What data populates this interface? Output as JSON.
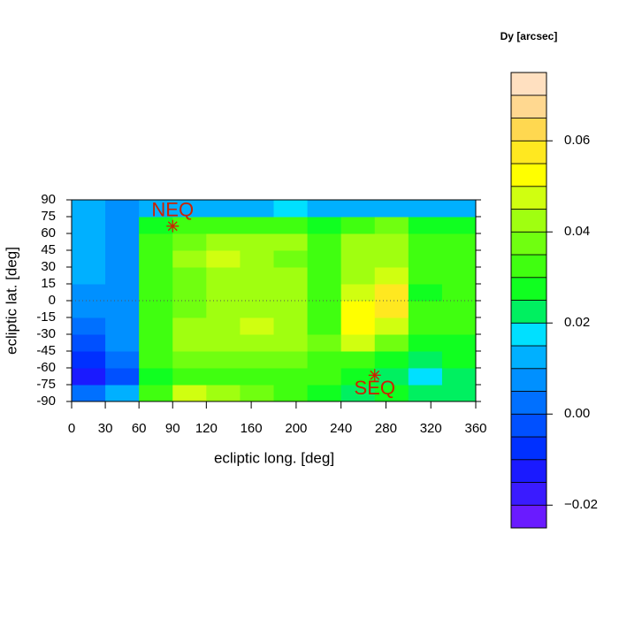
{
  "chart_data": {
    "type": "heatmap",
    "xlabel": "ecliptic long. [deg]",
    "ylabel": "ecliptic lat. [deg]",
    "xlim": [
      0,
      360
    ],
    "xticks": [
      0,
      30,
      60,
      90,
      120,
      160,
      200,
      240,
      280,
      320,
      360
    ],
    "ylim": [
      -90,
      90
    ],
    "yticks": [
      -90,
      -75,
      -60,
      -45,
      -30,
      -15,
      0,
      15,
      30,
      45,
      60,
      75,
      90
    ],
    "x": [
      15,
      45,
      75,
      105,
      135,
      165,
      195,
      225,
      255,
      285,
      315,
      345
    ],
    "y": [
      -82.5,
      -67.5,
      -52.5,
      -37.5,
      -22.5,
      -7.5,
      7.5,
      22.5,
      37.5,
      52.5,
      67.5,
      82.5
    ],
    "z": [
      [
        0.0,
        0.01,
        0.03,
        0.045,
        0.04,
        0.035,
        0.03,
        0.025,
        0.02,
        0.025,
        0.02,
        0.02
      ],
      [
        -0.015,
        -0.005,
        0.025,
        0.03,
        0.03,
        0.03,
        0.03,
        0.03,
        0.025,
        0.02,
        0.015,
        0.02
      ],
      [
        -0.01,
        0.0,
        0.03,
        0.035,
        0.035,
        0.035,
        0.035,
        0.03,
        0.03,
        0.025,
        0.02,
        0.025
      ],
      [
        -0.005,
        0.005,
        0.03,
        0.04,
        0.04,
        0.04,
        0.04,
        0.035,
        0.045,
        0.035,
        0.025,
        0.025
      ],
      [
        0.0,
        0.005,
        0.03,
        0.04,
        0.04,
        0.045,
        0.04,
        0.03,
        0.05,
        0.045,
        0.03,
        0.03
      ],
      [
        0.005,
        0.005,
        0.03,
        0.035,
        0.04,
        0.04,
        0.04,
        0.03,
        0.05,
        0.055,
        0.03,
        0.03
      ],
      [
        0.005,
        0.005,
        0.03,
        0.035,
        0.04,
        0.04,
        0.04,
        0.03,
        0.045,
        0.055,
        0.025,
        0.03
      ],
      [
        0.01,
        0.005,
        0.03,
        0.035,
        0.04,
        0.04,
        0.04,
        0.03,
        0.04,
        0.045,
        0.03,
        0.03
      ],
      [
        0.01,
        0.005,
        0.03,
        0.04,
        0.045,
        0.04,
        0.035,
        0.03,
        0.04,
        0.04,
        0.03,
        0.03
      ],
      [
        0.01,
        0.005,
        0.03,
        0.035,
        0.04,
        0.04,
        0.04,
        0.03,
        0.04,
        0.04,
        0.03,
        0.03
      ],
      [
        0.01,
        0.005,
        0.025,
        0.03,
        0.03,
        0.03,
        0.03,
        0.025,
        0.03,
        0.035,
        0.025,
        0.025
      ],
      [
        0.01,
        0.005,
        0.01,
        0.01,
        0.01,
        0.01,
        0.015,
        0.01,
        0.01,
        0.01,
        0.01,
        0.01
      ]
    ],
    "colorbar_title": "Dy [arcsec]",
    "zlim": [
      -0.025,
      0.075
    ],
    "zticks": [
      {
        "value": -0.02,
        "label": "−0.02"
      },
      {
        "value": 0,
        "label": "0.00"
      },
      0.02,
      0.04,
      0.06
    ],
    "colors": [
      "#6a1bff",
      "#3a1bff",
      "#1a1aff",
      "#0030ff",
      "#0050ff",
      "#0070ff",
      "#0090ff",
      "#00b0ff",
      "#00e0ff",
      "#00f060",
      "#10ff20",
      "#40ff10",
      "#70ff10",
      "#a0ff10",
      "#d0ff10",
      "#ffff00",
      "#ffe820",
      "#ffd850",
      "#ffd890",
      "#ffe0c0"
    ],
    "zero_line": 0,
    "markers": [
      {
        "label": "NEQ",
        "x": 90,
        "y": 66.56
      },
      {
        "label": "SEQ",
        "x": 270,
        "y": -66.56
      }
    ],
    "marker_color": "#cc2200"
  }
}
